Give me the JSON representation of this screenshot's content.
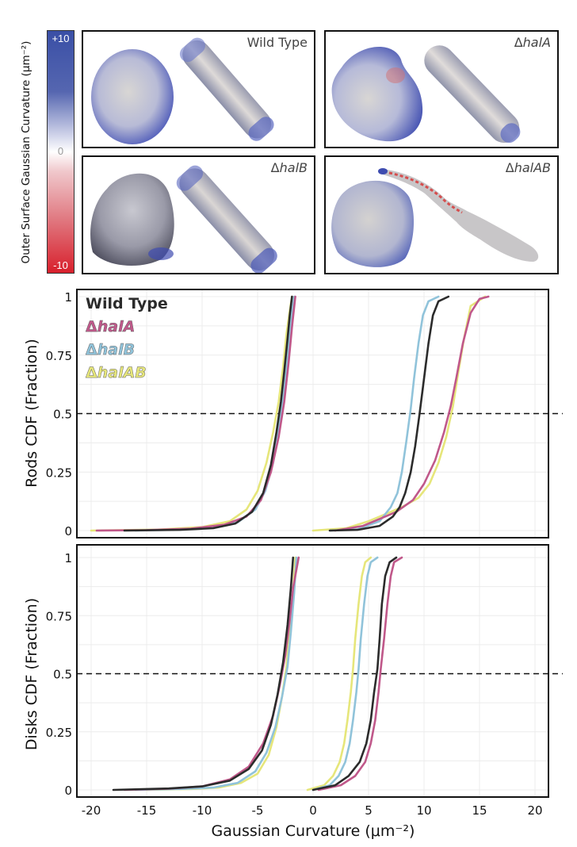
{
  "colorbar": {
    "title": "Outer Surface Gaussian Curvature (μm⁻²)",
    "max_label": "+10",
    "mid_label": "0",
    "min_label": "-10",
    "colors": {
      "max": "#3a4fa6",
      "mid": "#ffffff",
      "min": "#d8202c"
    }
  },
  "panels": [
    {
      "delta": "",
      "label": "Wild Type"
    },
    {
      "delta": "Δ",
      "label": "halA"
    },
    {
      "delta": "Δ",
      "label": "halB"
    },
    {
      "delta": "Δ",
      "label": "halAB"
    }
  ],
  "chart_data": [
    {
      "type": "line",
      "title": "",
      "ylabel": "Rods CDF (Fraction)",
      "xlabel": "",
      "xlim": [
        -21,
        21
      ],
      "ylim": [
        0,
        1
      ],
      "yticks": [
        "0",
        "0.25",
        "0.5",
        "0.75",
        "1"
      ],
      "grid": true,
      "reference_line": {
        "y": 0.5,
        "style": "dashed"
      },
      "legend": {
        "position": "top-left",
        "entries": [
          {
            "delta": "",
            "name": "Wild Type",
            "italic": false
          },
          {
            "delta": "Δ",
            "name": "halA",
            "italic": true
          },
          {
            "delta": "Δ",
            "name": "halB",
            "italic": true
          },
          {
            "delta": "Δ",
            "name": "halAB",
            "italic": true
          }
        ]
      },
      "series": [
        {
          "name": "Wild Type",
          "color": "#2b2b2b",
          "negative": {
            "x": [
              -17,
              -12,
              -9,
              -7,
              -5.5,
              -4.5,
              -3.8,
              -3.3,
              -2.9,
              -2.6,
              -2.3,
              -2.1,
              -1.9
            ],
            "y": [
              0,
              0.003,
              0.01,
              0.03,
              0.08,
              0.16,
              0.28,
              0.42,
              0.55,
              0.68,
              0.82,
              0.92,
              1
            ]
          },
          "positive": {
            "x": [
              1.5,
              4,
              6,
              7.2,
              7.8,
              8.3,
              8.8,
              9.2,
              9.6,
              10,
              10.4,
              10.8,
              11.3,
              12.2
            ],
            "y": [
              0,
              0.003,
              0.02,
              0.06,
              0.1,
              0.16,
              0.25,
              0.36,
              0.5,
              0.65,
              0.8,
              0.92,
              0.98,
              1
            ]
          }
        },
        {
          "name": "halA",
          "color": "#c0588a",
          "negative": {
            "x": [
              -19.5,
              -15,
              -11,
              -8,
              -6,
              -4.7,
              -3.8,
              -3.1,
              -2.6,
              -2.2,
              -1.9,
              -1.6
            ],
            "y": [
              0,
              0.002,
              0.008,
              0.025,
              0.06,
              0.13,
              0.25,
              0.4,
              0.55,
              0.72,
              0.87,
              1
            ]
          },
          "positive": {
            "x": [
              2,
              4.5,
              6,
              7.5,
              9,
              10,
              11,
              11.8,
              12.4,
              12.9,
              13.5,
              14.2,
              15,
              15.8
            ],
            "y": [
              0,
              0.02,
              0.05,
              0.08,
              0.13,
              0.2,
              0.3,
              0.42,
              0.53,
              0.65,
              0.8,
              0.93,
              0.99,
              1
            ]
          }
        },
        {
          "name": "halB",
          "color": "#90c3da",
          "negative": {
            "x": [
              -16,
              -12,
              -9,
              -6.8,
              -5.2,
              -4.3,
              -3.6,
              -3.1,
              -2.7,
              -2.4,
              -2.1,
              -1.9,
              -1.7
            ],
            "y": [
              0,
              0.004,
              0.012,
              0.035,
              0.09,
              0.17,
              0.29,
              0.43,
              0.56,
              0.7,
              0.84,
              0.93,
              1
            ]
          },
          "positive": {
            "x": [
              1.5,
              4,
              6,
              7,
              7.6,
              8,
              8.4,
              8.8,
              9.1,
              9.5,
              9.9,
              10.4,
              11.3
            ],
            "y": [
              0,
              0.005,
              0.04,
              0.1,
              0.16,
              0.25,
              0.38,
              0.52,
              0.65,
              0.8,
              0.92,
              0.98,
              1
            ]
          }
        },
        {
          "name": "halAB",
          "color": "#e6e67a",
          "negative": {
            "x": [
              -20,
              -14,
              -10,
              -7.5,
              -6,
              -5,
              -4.2,
              -3.6,
              -3.1,
              -2.7,
              -2.4,
              -2.1,
              -1.9
            ],
            "y": [
              0,
              0.004,
              0.015,
              0.04,
              0.09,
              0.17,
              0.29,
              0.42,
              0.55,
              0.7,
              0.84,
              0.94,
              1
            ]
          },
          "positive": {
            "x": [
              0,
              3,
              5,
              6.5,
              8,
              9.5,
              10.5,
              11.3,
              12,
              12.6,
              13.1,
              13.6,
              14.2,
              15.5
            ],
            "y": [
              0,
              0.01,
              0.04,
              0.07,
              0.1,
              0.14,
              0.2,
              0.29,
              0.4,
              0.53,
              0.68,
              0.82,
              0.96,
              1
            ]
          }
        }
      ]
    },
    {
      "type": "line",
      "title": "",
      "ylabel": "Disks CDF (Fraction)",
      "xlabel": "Gaussian Curvature (μm⁻²)",
      "xlim": [
        -21,
        21
      ],
      "ylim": [
        0,
        1
      ],
      "xticks": [
        "-20",
        "-15",
        "-10",
        "-5",
        "0",
        "5",
        "10",
        "15",
        "20"
      ],
      "yticks": [
        "0",
        "0.25",
        "0.5",
        "0.75",
        "1"
      ],
      "grid": true,
      "reference_line": {
        "y": 0.5,
        "style": "dashed"
      },
      "series": [
        {
          "name": "Wild Type",
          "color": "#2b2b2b",
          "negative": {
            "x": [
              -18,
              -13,
              -10,
              -7.5,
              -5.8,
              -4.6,
              -3.8,
              -3.2,
              -2.7,
              -2.3,
              -2,
              -1.8
            ],
            "y": [
              0,
              0.006,
              0.015,
              0.04,
              0.09,
              0.17,
              0.28,
              0.41,
              0.55,
              0.71,
              0.87,
              1
            ]
          },
          "positive": {
            "x": [
              0,
              2,
              3.2,
              4.2,
              4.8,
              5.2,
              5.5,
              5.8,
              6,
              6.2,
              6.5,
              6.9,
              7.5
            ],
            "y": [
              0,
              0.02,
              0.06,
              0.12,
              0.2,
              0.3,
              0.42,
              0.52,
              0.65,
              0.8,
              0.92,
              0.98,
              1
            ]
          }
        },
        {
          "name": "halA",
          "color": "#c0588a",
          "negative": {
            "x": [
              -17,
              -13,
              -10,
              -7.5,
              -5.8,
              -4.5,
              -3.6,
              -3,
              -2.5,
              -2.1,
              -1.8,
              -1.3
            ],
            "y": [
              0,
              0.005,
              0.015,
              0.045,
              0.1,
              0.2,
              0.32,
              0.45,
              0.58,
              0.73,
              0.87,
              1
            ]
          },
          "positive": {
            "x": [
              0.5,
              2.5,
              3.8,
              4.7,
              5.2,
              5.6,
              5.9,
              6.1,
              6.4,
              6.7,
              7,
              7.3,
              8
            ],
            "y": [
              0,
              0.02,
              0.06,
              0.12,
              0.2,
              0.3,
              0.42,
              0.52,
              0.65,
              0.8,
              0.92,
              0.98,
              1
            ]
          }
        },
        {
          "name": "halB",
          "color": "#90c3da",
          "negative": {
            "x": [
              -16,
              -12,
              -9,
              -6.8,
              -5.2,
              -4.2,
              -3.4,
              -2.8,
              -2.3,
              -2,
              -1.7,
              -1.5
            ],
            "y": [
              0,
              0.004,
              0.01,
              0.03,
              0.08,
              0.16,
              0.27,
              0.4,
              0.53,
              0.68,
              0.85,
              1
            ]
          },
          "positive": {
            "x": [
              0,
              1.5,
              2.3,
              2.9,
              3.3,
              3.6,
              3.9,
              4.1,
              4.3,
              4.6,
              4.9,
              5.2,
              5.8
            ],
            "y": [
              0,
              0.02,
              0.06,
              0.12,
              0.2,
              0.3,
              0.42,
              0.52,
              0.65,
              0.8,
              0.92,
              0.98,
              1
            ]
          }
        },
        {
          "name": "halAB",
          "color": "#e6e67a",
          "negative": {
            "x": [
              -15,
              -11,
              -8.5,
              -6.5,
              -5,
              -4,
              -3.3,
              -2.8,
              -2.4,
              -2.1,
              -1.8,
              -1.6
            ],
            "y": [
              0,
              0.004,
              0.01,
              0.03,
              0.07,
              0.15,
              0.27,
              0.4,
              0.53,
              0.68,
              0.85,
              1
            ]
          },
          "positive": {
            "x": [
              -0.5,
              1,
              1.8,
              2.4,
              2.8,
              3.1,
              3.4,
              3.6,
              3.8,
              4.1,
              4.4,
              4.7,
              5.2
            ],
            "y": [
              0,
              0.02,
              0.06,
              0.12,
              0.2,
              0.3,
              0.42,
              0.52,
              0.65,
              0.8,
              0.92,
              0.98,
              1
            ]
          }
        }
      ]
    }
  ]
}
